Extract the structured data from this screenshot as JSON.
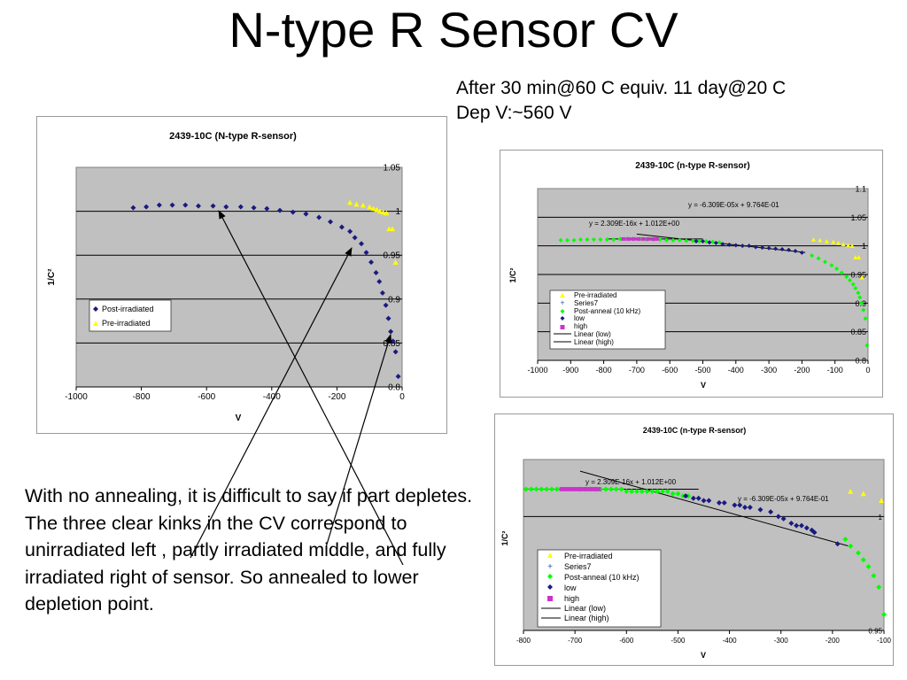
{
  "slide": {
    "title": "N-type R Sensor CV",
    "note_line1": "After 30 min@60 C equiv. 11 day@20 C",
    "note_line2": "Dep V:~560 V",
    "body": "With no annealing, it is difficult to say if part depletes.  The three clear kinks in the CV correspond to unirradiated left , partly irradiated middle, and fully irradiated right of sensor.  So annealed to lower depletion point."
  },
  "chart_data": [
    {
      "type": "scatter",
      "title": "2439-10C (N-type R-sensor)",
      "xlabel": "V",
      "ylabel": "1/C²",
      "xlim": [
        -1000,
        0
      ],
      "ylim": [
        0.8,
        1.05
      ],
      "xticks": [
        "-1000",
        "-800",
        "-600",
        "-400",
        "-200",
        "0"
      ],
      "yticks": [
        "0.8",
        "0.85",
        "0.9",
        "0.95",
        "1",
        "1.05"
      ],
      "grid": true,
      "legend_position": "middle-left",
      "series": [
        {
          "name": "Post-irradiated",
          "marker": "diamond",
          "color": "#1a1a80",
          "x": [
            -825,
            -785,
            -745,
            -705,
            -665,
            -625,
            -580,
            -540,
            -495,
            -455,
            -415,
            -375,
            -335,
            -295,
            -255,
            -220,
            -185,
            -160,
            -145,
            -125,
            -110,
            -95,
            -80,
            -70,
            -60,
            -50,
            -42,
            -35,
            -28,
            -20,
            -12
          ],
          "y": [
            1.004,
            1.005,
            1.007,
            1.007,
            1.007,
            1.006,
            1.006,
            1.005,
            1.005,
            1.004,
            1.003,
            1.001,
            0.999,
            0.997,
            0.993,
            0.988,
            0.982,
            0.977,
            0.97,
            0.963,
            0.953,
            0.942,
            0.93,
            0.92,
            0.907,
            0.893,
            0.878,
            0.863,
            0.852,
            0.84,
            0.812
          ]
        },
        {
          "name": "Pre-irradiated",
          "marker": "triangle",
          "color": "#ffff00",
          "x": [
            -160,
            -140,
            -120,
            -100,
            -88,
            -78,
            -68,
            -58,
            -48,
            -40,
            -30,
            -20
          ],
          "y": [
            1.01,
            1.008,
            1.007,
            1.005,
            1.003,
            1.002,
            1.0,
            0.999,
            0.998,
            0.98,
            0.98,
            0.942
          ]
        }
      ]
    },
    {
      "type": "scatter",
      "title": "2439-10C (n-type R-sensor)",
      "xlabel": "V",
      "ylabel": "1/C²",
      "xlim": [
        -1000,
        0
      ],
      "ylim": [
        0.8,
        1.1
      ],
      "xticks": [
        "-1000",
        "-900",
        "-800",
        "-700",
        "-600",
        "-500",
        "-400",
        "-300",
        "-200",
        "-100",
        "0"
      ],
      "yticks": [
        "0.8",
        "0.85",
        "0.9",
        "0.95",
        "1",
        "1.05",
        "1.1"
      ],
      "grid": true,
      "legend_position": "lower-left",
      "legend": [
        "Pre-irradiated",
        "Series7",
        "Post-anneal (10 kHz)",
        "low",
        "high",
        "Linear (low)",
        "Linear (high)"
      ],
      "annotations": [
        "y = -6.309E-05x + 9.764E-01",
        "y = 2.309E-16x + 1.012E+00"
      ],
      "series": [
        {
          "name": "Post-anneal (10 kHz)",
          "marker": "diamond",
          "color": "#00ff00",
          "x": [
            -930,
            -910,
            -890,
            -870,
            -850,
            -830,
            -810,
            -790,
            -770,
            -750,
            -730,
            -710,
            -690,
            -670,
            -650,
            -630,
            -610,
            -590,
            -570,
            -550,
            -530,
            -510,
            -490,
            -470,
            -450,
            -170,
            -150,
            -130,
            -110,
            -95,
            -80,
            -65,
            -55,
            -45,
            -38,
            -30,
            -25,
            -20,
            -14,
            -8,
            -3
          ],
          "y": [
            1.01,
            1.01,
            1.01,
            1.011,
            1.011,
            1.011,
            1.011,
            1.011,
            1.011,
            1.012,
            1.012,
            1.012,
            1.012,
            1.011,
            1.011,
            1.011,
            1.01,
            1.01,
            1.01,
            1.009,
            1.009,
            1.008,
            1.008,
            1.007,
            1.006,
            0.983,
            0.978,
            0.972,
            0.966,
            0.96,
            0.953,
            0.946,
            0.94,
            0.933,
            0.926,
            0.918,
            0.91,
            0.9,
            0.888,
            0.873,
            0.826
          ]
        },
        {
          "name": "low",
          "marker": "diamond",
          "color": "#1a1a80",
          "x": [
            -520,
            -500,
            -480,
            -460,
            -440,
            -420,
            -400,
            -380,
            -360,
            -340,
            -320,
            -300,
            -280,
            -260,
            -240,
            -220,
            -200
          ],
          "y": [
            1.008,
            1.008,
            1.006,
            1.005,
            1.003,
            1.002,
            1.001,
            1.0,
            1.0,
            0.998,
            0.997,
            0.996,
            0.995,
            0.994,
            0.993,
            0.991,
            0.988
          ]
        },
        {
          "name": "high",
          "marker": "square",
          "color": "#cc33cc",
          "x": [
            -740,
            -725,
            -710,
            -695,
            -680,
            -665,
            -650,
            -640
          ],
          "y": [
            1.012,
            1.012,
            1.012,
            1.012,
            1.012,
            1.012,
            1.012,
            1.012
          ]
        },
        {
          "name": "Pre-irradiated",
          "marker": "triangle",
          "color": "#ffff00",
          "x": [
            -165,
            -145,
            -125,
            -105,
            -90,
            -75,
            -60,
            -48,
            -38,
            -28,
            -18
          ],
          "y": [
            1.011,
            1.01,
            1.008,
            1.007,
            1.005,
            1.003,
            1.001,
            1.0,
            0.98,
            0.98,
            0.945
          ]
        }
      ],
      "lines": [
        {
          "name": "Linear (high)",
          "x": [
            -790,
            -500
          ],
          "y": [
            1.012,
            1.012
          ]
        },
        {
          "name": "Linear (low)",
          "x": [
            -700,
            -190
          ],
          "y": [
            1.0205,
            0.9884
          ]
        }
      ]
    },
    {
      "type": "scatter",
      "title": "2439-10C (n-type R-sensor)",
      "xlabel": "V",
      "ylabel": "1/C²",
      "xlim": [
        -800,
        -100
      ],
      "ylim": [
        0.95,
        1.025
      ],
      "xticks": [
        "-800",
        "-700",
        "-600",
        "-500",
        "-400",
        "-300",
        "-200",
        "-100"
      ],
      "yticks": [
        "0.95",
        "1"
      ],
      "grid": true,
      "legend_position": "lower-left",
      "legend": [
        "Pre-irradiated",
        "Series7",
        "Post-anneal (10 kHz)",
        "low",
        "high",
        "Linear (low)",
        "Linear (high)"
      ],
      "annotations": [
        "y = 2.309E-16x + 1.012E+00",
        "y = -6.309E-05x + 9.764E-01"
      ],
      "series": [
        {
          "name": "Post-anneal (10 kHz)",
          "marker": "diamond",
          "color": "#00ff00",
          "x": [
            -795,
            -785,
            -775,
            -765,
            -755,
            -745,
            -735,
            -690,
            -680,
            -670,
            -660,
            -650,
            -640,
            -630,
            -620,
            -610,
            -600,
            -590,
            -580,
            -570,
            -560,
            -550,
            -540,
            -530,
            -520,
            -510,
            -500,
            -490,
            -480,
            -175,
            -165,
            -150,
            -140,
            -130,
            -120,
            -110,
            -100
          ],
          "y": [
            1.012,
            1.012,
            1.012,
            1.012,
            1.012,
            1.012,
            1.012,
            1.012,
            1.012,
            1.012,
            1.012,
            1.012,
            1.012,
            1.012,
            1.012,
            1.012,
            1.011,
            1.011,
            1.011,
            1.011,
            1.011,
            1.011,
            1.011,
            1.011,
            1.011,
            1.01,
            1.01,
            1.009,
            1.009,
            0.99,
            0.987,
            0.984,
            0.981,
            0.978,
            0.974,
            0.969,
            0.957
          ]
        },
        {
          "name": "low",
          "marker": "diamond",
          "color": "#1a1a80",
          "x": [
            -485,
            -470,
            -460,
            -450,
            -440,
            -420,
            -410,
            -390,
            -380,
            -370,
            -360,
            -340,
            -320,
            -305,
            -295,
            -280,
            -270,
            -260,
            -250,
            -240,
            -235,
            -190
          ],
          "y": [
            1.009,
            1.008,
            1.008,
            1.007,
            1.007,
            1.006,
            1.006,
            1.005,
            1.005,
            1.004,
            1.004,
            1.003,
            1.002,
            1.0,
            0.999,
            0.997,
            0.996,
            0.996,
            0.995,
            0.994,
            0.993,
            0.988
          ]
        },
        {
          "name": "high",
          "marker": "square",
          "color": "#cc33cc",
          "x": [
            -725,
            -715,
            -705,
            -695,
            -685,
            -675,
            -665,
            -655
          ],
          "y": [
            1.012,
            1.012,
            1.012,
            1.012,
            1.012,
            1.012,
            1.012,
            1.012
          ]
        },
        {
          "name": "Pre-irradiated",
          "marker": "triangle",
          "color": "#ffff00",
          "x": [
            -165,
            -140,
            -105
          ],
          "y": [
            1.011,
            1.01,
            1.007
          ]
        }
      ],
      "lines": [
        {
          "name": "Linear (high)",
          "x": [
            -800,
            -460
          ],
          "y": [
            1.012,
            1.012
          ]
        },
        {
          "name": "Linear (low)",
          "x": [
            -690,
            -170
          ],
          "y": [
            1.0199,
            0.9871
          ]
        }
      ]
    }
  ]
}
